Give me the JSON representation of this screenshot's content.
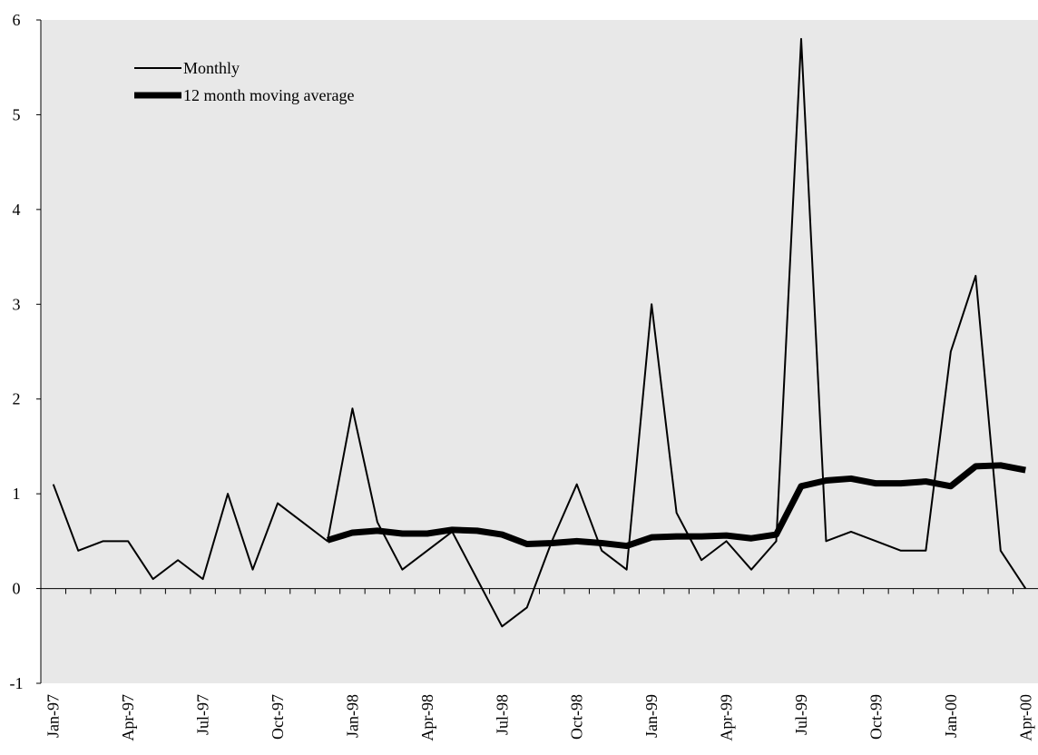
{
  "chart_data": {
    "type": "line",
    "categories": [
      "Jan-97",
      null,
      null,
      "Apr-97",
      null,
      null,
      "Jul-97",
      null,
      null,
      "Oct-97",
      null,
      null,
      "Jan-98",
      null,
      null,
      "Apr-98",
      null,
      null,
      "Jul-98",
      null,
      null,
      "Oct-98",
      null,
      null,
      "Jan-99",
      null,
      null,
      "Apr-99",
      null,
      null,
      "Jul-99",
      null,
      null,
      "Oct-99",
      null,
      null,
      "Jan-00",
      null,
      null,
      "Apr-00"
    ],
    "series": [
      {
        "name": "Monthly",
        "color": "#000000",
        "values": [
          1.1,
          0.4,
          0.5,
          0.5,
          0.1,
          0.3,
          0.1,
          1.0,
          0.2,
          0.9,
          0.7,
          0.5,
          1.9,
          0.7,
          0.2,
          0.4,
          0.6,
          0.1,
          -0.4,
          -0.2,
          0.5,
          1.1,
          0.4,
          0.2,
          3.0,
          0.8,
          0.3,
          0.5,
          0.2,
          0.5,
          5.8,
          0.5,
          0.6,
          0.5,
          0.4,
          0.4,
          2.5,
          3.3,
          0.4,
          0.0
        ]
      },
      {
        "name": "12 month moving average",
        "color": "#000000",
        "values": [
          null,
          null,
          null,
          null,
          null,
          null,
          null,
          null,
          null,
          null,
          null,
          0.51,
          0.59,
          0.61,
          0.58,
          0.58,
          0.62,
          0.61,
          0.57,
          0.47,
          0.48,
          0.5,
          0.48,
          0.45,
          0.54,
          0.55,
          0.55,
          0.56,
          0.53,
          0.57,
          1.08,
          1.14,
          1.16,
          1.11,
          1.11,
          1.13,
          1.08,
          1.29,
          1.3,
          1.25
        ]
      }
    ],
    "ylim": [
      -1,
      6
    ],
    "yticks": [
      -1,
      0,
      1,
      2,
      3,
      4,
      5,
      6
    ],
    "grid": false,
    "legend": "top-left",
    "background": "#e8e8e8"
  }
}
